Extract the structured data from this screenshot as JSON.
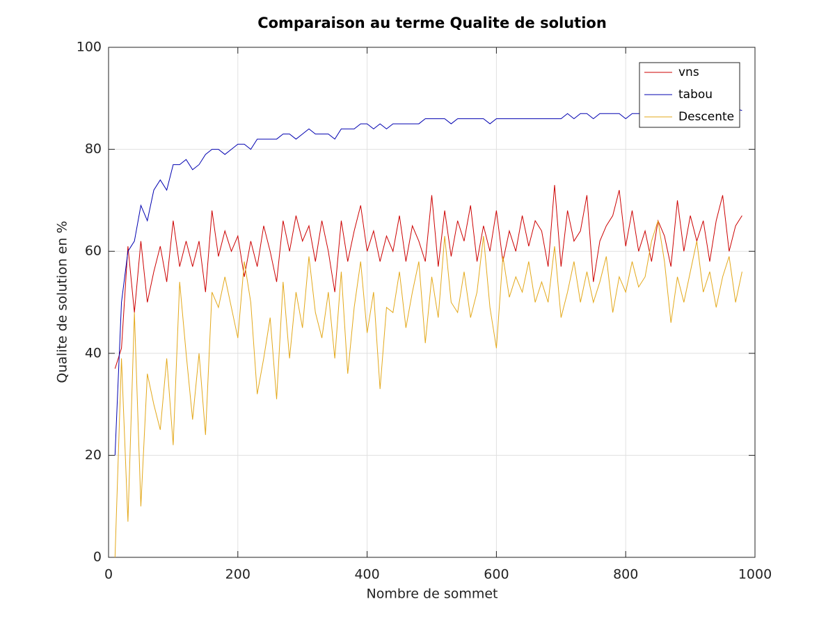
{
  "chart_data": {
    "type": "line",
    "title": "Comparaison au terme Qualite de solution",
    "x_label": "Nombre de sommet",
    "y_label": "Qualite de solution en %",
    "xlim": [
      0,
      1000
    ],
    "xticks": [
      0,
      200,
      400,
      600,
      800,
      1000
    ],
    "ylim": [
      0,
      100
    ],
    "yticks": [
      0,
      20,
      40,
      60,
      80,
      100
    ],
    "grid": true,
    "legend": "top-right",
    "x": [
      10,
      20,
      30,
      40,
      50,
      60,
      70,
      80,
      90,
      100,
      110,
      120,
      130,
      140,
      150,
      160,
      170,
      180,
      190,
      200,
      210,
      220,
      230,
      240,
      250,
      260,
      270,
      280,
      290,
      300,
      310,
      320,
      330,
      340,
      350,
      360,
      370,
      380,
      390,
      400,
      410,
      420,
      430,
      440,
      450,
      460,
      470,
      480,
      490,
      500,
      510,
      520,
      530,
      540,
      550,
      560,
      570,
      580,
      590,
      600,
      610,
      620,
      630,
      640,
      650,
      660,
      670,
      680,
      690,
      700,
      710,
      720,
      730,
      740,
      750,
      760,
      770,
      780,
      790,
      800,
      810,
      820,
      830,
      840,
      850,
      860,
      870,
      880,
      890,
      900,
      910,
      920,
      930,
      940,
      950,
      960,
      970,
      980
    ],
    "series": [
      {
        "name": "vns",
        "color": "#cc0000",
        "values": [
          37,
          41,
          61,
          48,
          62,
          50,
          56,
          61,
          54,
          66,
          57,
          62,
          57,
          62,
          52,
          68,
          59,
          64,
          60,
          63,
          55,
          62,
          57,
          65,
          60,
          54,
          66,
          60,
          67,
          62,
          65,
          58,
          66,
          60,
          52,
          66,
          58,
          64,
          69,
          60,
          64,
          58,
          63,
          60,
          67,
          58,
          65,
          62,
          58,
          71,
          57,
          68,
          59,
          66,
          62,
          69,
          58,
          65,
          60,
          68,
          58,
          64,
          60,
          67,
          61,
          66,
          64,
          57,
          73,
          57,
          68,
          62,
          64,
          71,
          54,
          62,
          65,
          67,
          72,
          61,
          68,
          60,
          64,
          58,
          66,
          63,
          57,
          70,
          60,
          67,
          62,
          66,
          58,
          66,
          71,
          60,
          65,
          67
        ]
      },
      {
        "name": "tabou",
        "color": "#0000b0",
        "values": [
          20,
          50,
          60,
          62,
          69,
          66,
          72,
          74,
          72,
          77,
          77,
          78,
          76,
          77,
          79,
          80,
          80,
          79,
          80,
          81,
          81,
          80,
          82,
          82,
          82,
          82,
          83,
          83,
          82,
          83,
          84,
          83,
          83,
          83,
          82,
          84,
          84,
          84,
          85,
          85,
          84,
          85,
          84,
          85,
          85,
          85,
          85,
          85,
          86,
          86,
          86,
          86,
          85,
          86,
          86,
          86,
          86,
          86,
          85,
          86,
          86,
          86,
          86,
          86,
          86,
          86,
          86,
          86,
          86,
          86,
          87,
          86,
          87,
          87,
          86,
          87,
          87,
          87,
          87,
          86,
          87,
          87,
          87,
          87,
          87,
          87,
          87,
          88,
          87,
          88,
          88,
          88,
          88,
          87,
          88,
          88,
          88,
          87.6
        ]
      },
      {
        "name": "Descente",
        "color": "#e3a81a",
        "values": [
          0,
          39,
          7,
          48,
          10,
          36,
          30,
          25,
          39,
          22,
          54,
          40,
          27,
          40,
          24,
          52,
          49,
          55,
          49,
          43,
          58,
          50,
          32,
          39,
          47,
          31,
          54,
          39,
          52,
          45,
          59,
          48,
          43,
          52,
          39,
          56,
          36,
          49,
          58,
          44,
          52,
          33,
          49,
          48,
          56,
          45,
          52,
          58,
          42,
          55,
          47,
          63,
          50,
          48,
          56,
          47,
          52,
          63,
          49,
          41,
          59,
          51,
          55,
          52,
          58,
          50,
          54,
          50,
          61,
          47,
          52,
          58,
          50,
          56,
          50,
          54,
          59,
          48,
          55,
          52,
          58,
          53,
          55,
          62,
          66,
          58,
          46,
          55,
          50,
          56,
          62,
          52,
          56,
          49,
          55,
          59,
          50,
          56
        ]
      }
    ]
  }
}
